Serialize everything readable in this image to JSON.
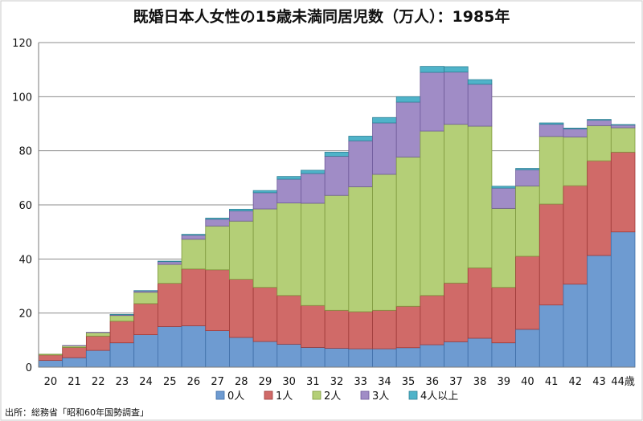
{
  "chart_data": {
    "type": "bar",
    "stacked": true,
    "title": "既婚日本人女性の15歳未満同居児数（万人）：1985年",
    "source": "出所：総務省「昭和60年国勢調査」",
    "categories": [
      "20",
      "21",
      "22",
      "23",
      "24",
      "25",
      "26",
      "27",
      "28",
      "29",
      "30",
      "31",
      "32",
      "33",
      "34",
      "35",
      "36",
      "37",
      "38",
      "39",
      "40",
      "41",
      "42",
      "43",
      "44歳"
    ],
    "ylim": [
      0,
      120
    ],
    "yticks": [
      0,
      20,
      40,
      60,
      80,
      100,
      120
    ],
    "grid": true,
    "legend_position": "bottom",
    "series": [
      {
        "name": "0人",
        "color": "#6e9bd1",
        "stroke": "#3f6ea8",
        "values": [
          2.5,
          3.5,
          6.2,
          9.0,
          12.0,
          15.0,
          15.3,
          13.5,
          11.0,
          9.5,
          8.5,
          7.3,
          7.0,
          6.8,
          6.8,
          7.2,
          8.3,
          9.4,
          10.7,
          9.0,
          14.0,
          23.0,
          30.7,
          41.3,
          50.0
        ]
      },
      {
        "name": "1人",
        "color": "#d06a68",
        "stroke": "#9e3b39",
        "values": [
          2.0,
          3.8,
          5.3,
          8.0,
          11.5,
          16.0,
          21.0,
          22.5,
          21.5,
          20.0,
          18.0,
          15.5,
          14.0,
          13.7,
          14.2,
          15.3,
          18.2,
          21.7,
          26.0,
          20.5,
          27.0,
          37.3,
          36.4,
          35.0,
          29.5
        ]
      },
      {
        "name": "2人",
        "color": "#b4cf77",
        "stroke": "#7f9a3f",
        "values": [
          0.3,
          0.6,
          1.3,
          2.1,
          4.2,
          7.0,
          11.0,
          16.2,
          21.5,
          29.0,
          34.2,
          37.8,
          42.5,
          46.2,
          50.3,
          55.2,
          60.8,
          58.7,
          52.4,
          29.2,
          26.0,
          25.0,
          18.0,
          13.0,
          9.0
        ]
      },
      {
        "name": "3人",
        "color": "#a08cc6",
        "stroke": "#6e5a99",
        "values": [
          0.0,
          0.1,
          0.1,
          0.3,
          0.5,
          1.0,
          1.5,
          2.5,
          3.8,
          6.0,
          8.8,
          11.0,
          14.5,
          17.0,
          19.0,
          20.3,
          21.7,
          19.3,
          15.5,
          7.5,
          6.0,
          4.5,
          3.0,
          2.0,
          1.0
        ]
      },
      {
        "name": "4人以上",
        "color": "#4fb3c9",
        "stroke": "#2f8196",
        "values": [
          0.0,
          0.0,
          0.0,
          0.1,
          0.1,
          0.2,
          0.3,
          0.4,
          0.6,
          0.8,
          1.0,
          1.2,
          1.5,
          1.7,
          2.0,
          2.0,
          2.2,
          2.0,
          1.7,
          0.7,
          0.5,
          0.5,
          0.3,
          0.3,
          0.2
        ]
      }
    ]
  }
}
